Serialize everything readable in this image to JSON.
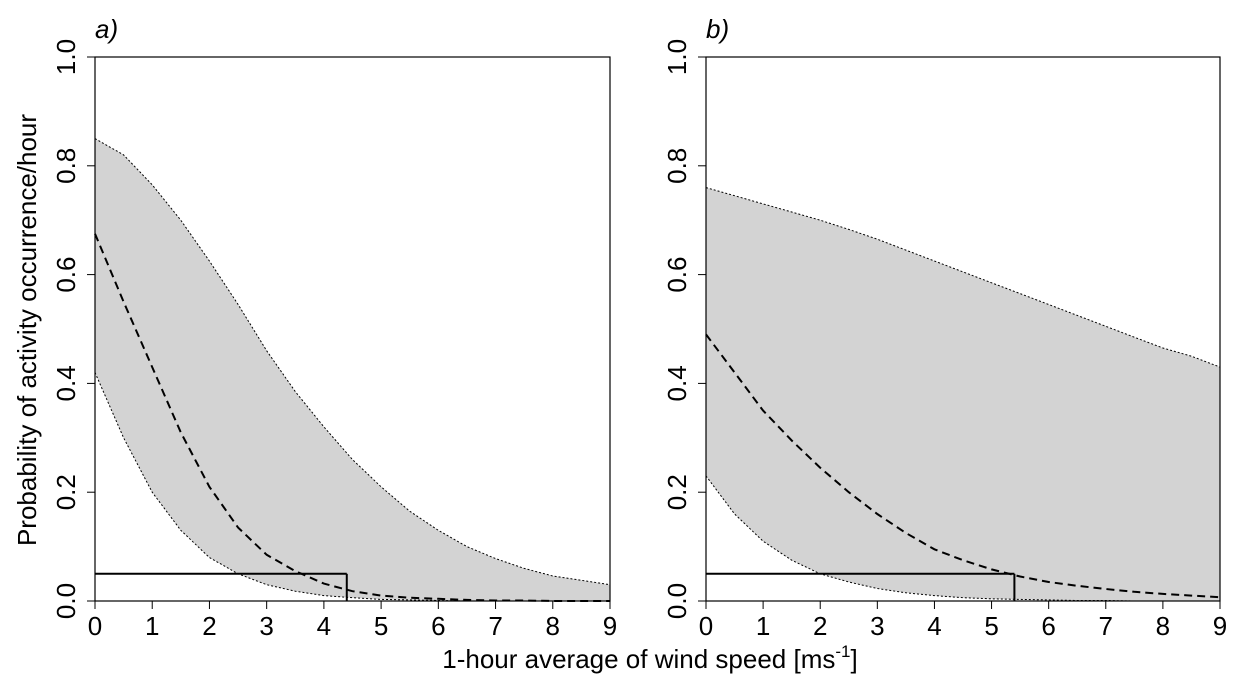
{
  "chart_data": [
    {
      "type": "line",
      "panel_label": "a)",
      "xlim": [
        0,
        9
      ],
      "ylim": [
        0,
        1.0
      ],
      "xticks": [
        "0",
        "1",
        "2",
        "3",
        "4",
        "5",
        "6",
        "7",
        "8",
        "9"
      ],
      "yticks": [
        "0.0",
        "0.2",
        "0.4",
        "0.6",
        "0.8",
        "1.0"
      ],
      "grid": false,
      "x": [
        0,
        0.5,
        1,
        1.5,
        2,
        2.5,
        3,
        3.5,
        4,
        4.5,
        5,
        5.5,
        6,
        6.5,
        7,
        7.5,
        8,
        8.5,
        9
      ],
      "series": [
        {
          "role": "fit",
          "style": "dashed",
          "values": [
            0.675,
            0.55,
            0.43,
            0.31,
            0.21,
            0.135,
            0.085,
            0.055,
            0.032,
            0.018,
            0.01,
            0.006,
            0.004,
            0.002,
            0.001,
            0.001,
            0.0,
            0.0,
            0.0
          ]
        },
        {
          "role": "ci-upper",
          "style": "dotted",
          "values": [
            0.85,
            0.82,
            0.765,
            0.7,
            0.625,
            0.545,
            0.46,
            0.385,
            0.32,
            0.26,
            0.21,
            0.165,
            0.13,
            0.1,
            0.078,
            0.06,
            0.046,
            0.038,
            0.03
          ]
        },
        {
          "role": "ci-lower",
          "style": "dotted",
          "values": [
            0.42,
            0.3,
            0.2,
            0.13,
            0.08,
            0.05,
            0.03,
            0.018,
            0.01,
            0.006,
            0.003,
            0.002,
            0.001,
            0.0,
            0.0,
            0.0,
            0.0,
            0.0,
            0.0
          ]
        }
      ],
      "threshold": {
        "y": 0.05,
        "x": 4.4
      }
    },
    {
      "type": "line",
      "panel_label": "b)",
      "xlim": [
        0,
        9
      ],
      "ylim": [
        0,
        1.0
      ],
      "xticks": [
        "0",
        "1",
        "2",
        "3",
        "4",
        "5",
        "6",
        "7",
        "8",
        "9"
      ],
      "yticks": [
        "0.0",
        "0.2",
        "0.4",
        "0.6",
        "0.8",
        "1.0"
      ],
      "grid": false,
      "x": [
        0,
        0.5,
        1,
        1.5,
        2,
        2.5,
        3,
        3.5,
        4,
        4.5,
        5,
        5.5,
        6,
        6.5,
        7,
        7.5,
        8,
        8.5,
        9
      ],
      "series": [
        {
          "role": "fit",
          "style": "dashed",
          "values": [
            0.49,
            0.42,
            0.35,
            0.295,
            0.245,
            0.2,
            0.16,
            0.125,
            0.095,
            0.075,
            0.058,
            0.045,
            0.035,
            0.028,
            0.022,
            0.017,
            0.013,
            0.01,
            0.007
          ]
        },
        {
          "role": "ci-upper",
          "style": "dotted",
          "values": [
            0.76,
            0.745,
            0.73,
            0.715,
            0.7,
            0.683,
            0.665,
            0.645,
            0.625,
            0.605,
            0.585,
            0.565,
            0.545,
            0.525,
            0.505,
            0.485,
            0.465,
            0.45,
            0.43
          ]
        },
        {
          "role": "ci-lower",
          "style": "dotted",
          "values": [
            0.23,
            0.16,
            0.11,
            0.075,
            0.05,
            0.035,
            0.023,
            0.015,
            0.01,
            0.006,
            0.004,
            0.003,
            0.002,
            0.001,
            0.001,
            0.0,
            0.0,
            0.0,
            0.0
          ]
        }
      ],
      "threshold": {
        "y": 0.05,
        "x": 5.4
      }
    }
  ],
  "labels": {
    "ylabel": "Probability of activity occurrence/hour",
    "xlabel_main": "1-hour average of wind speed [ms",
    "xlabel_sup": "-1",
    "xlabel_end": "]"
  },
  "colors": {
    "band": "#d3d3d3",
    "line": "#000000",
    "background": "#ffffff"
  }
}
